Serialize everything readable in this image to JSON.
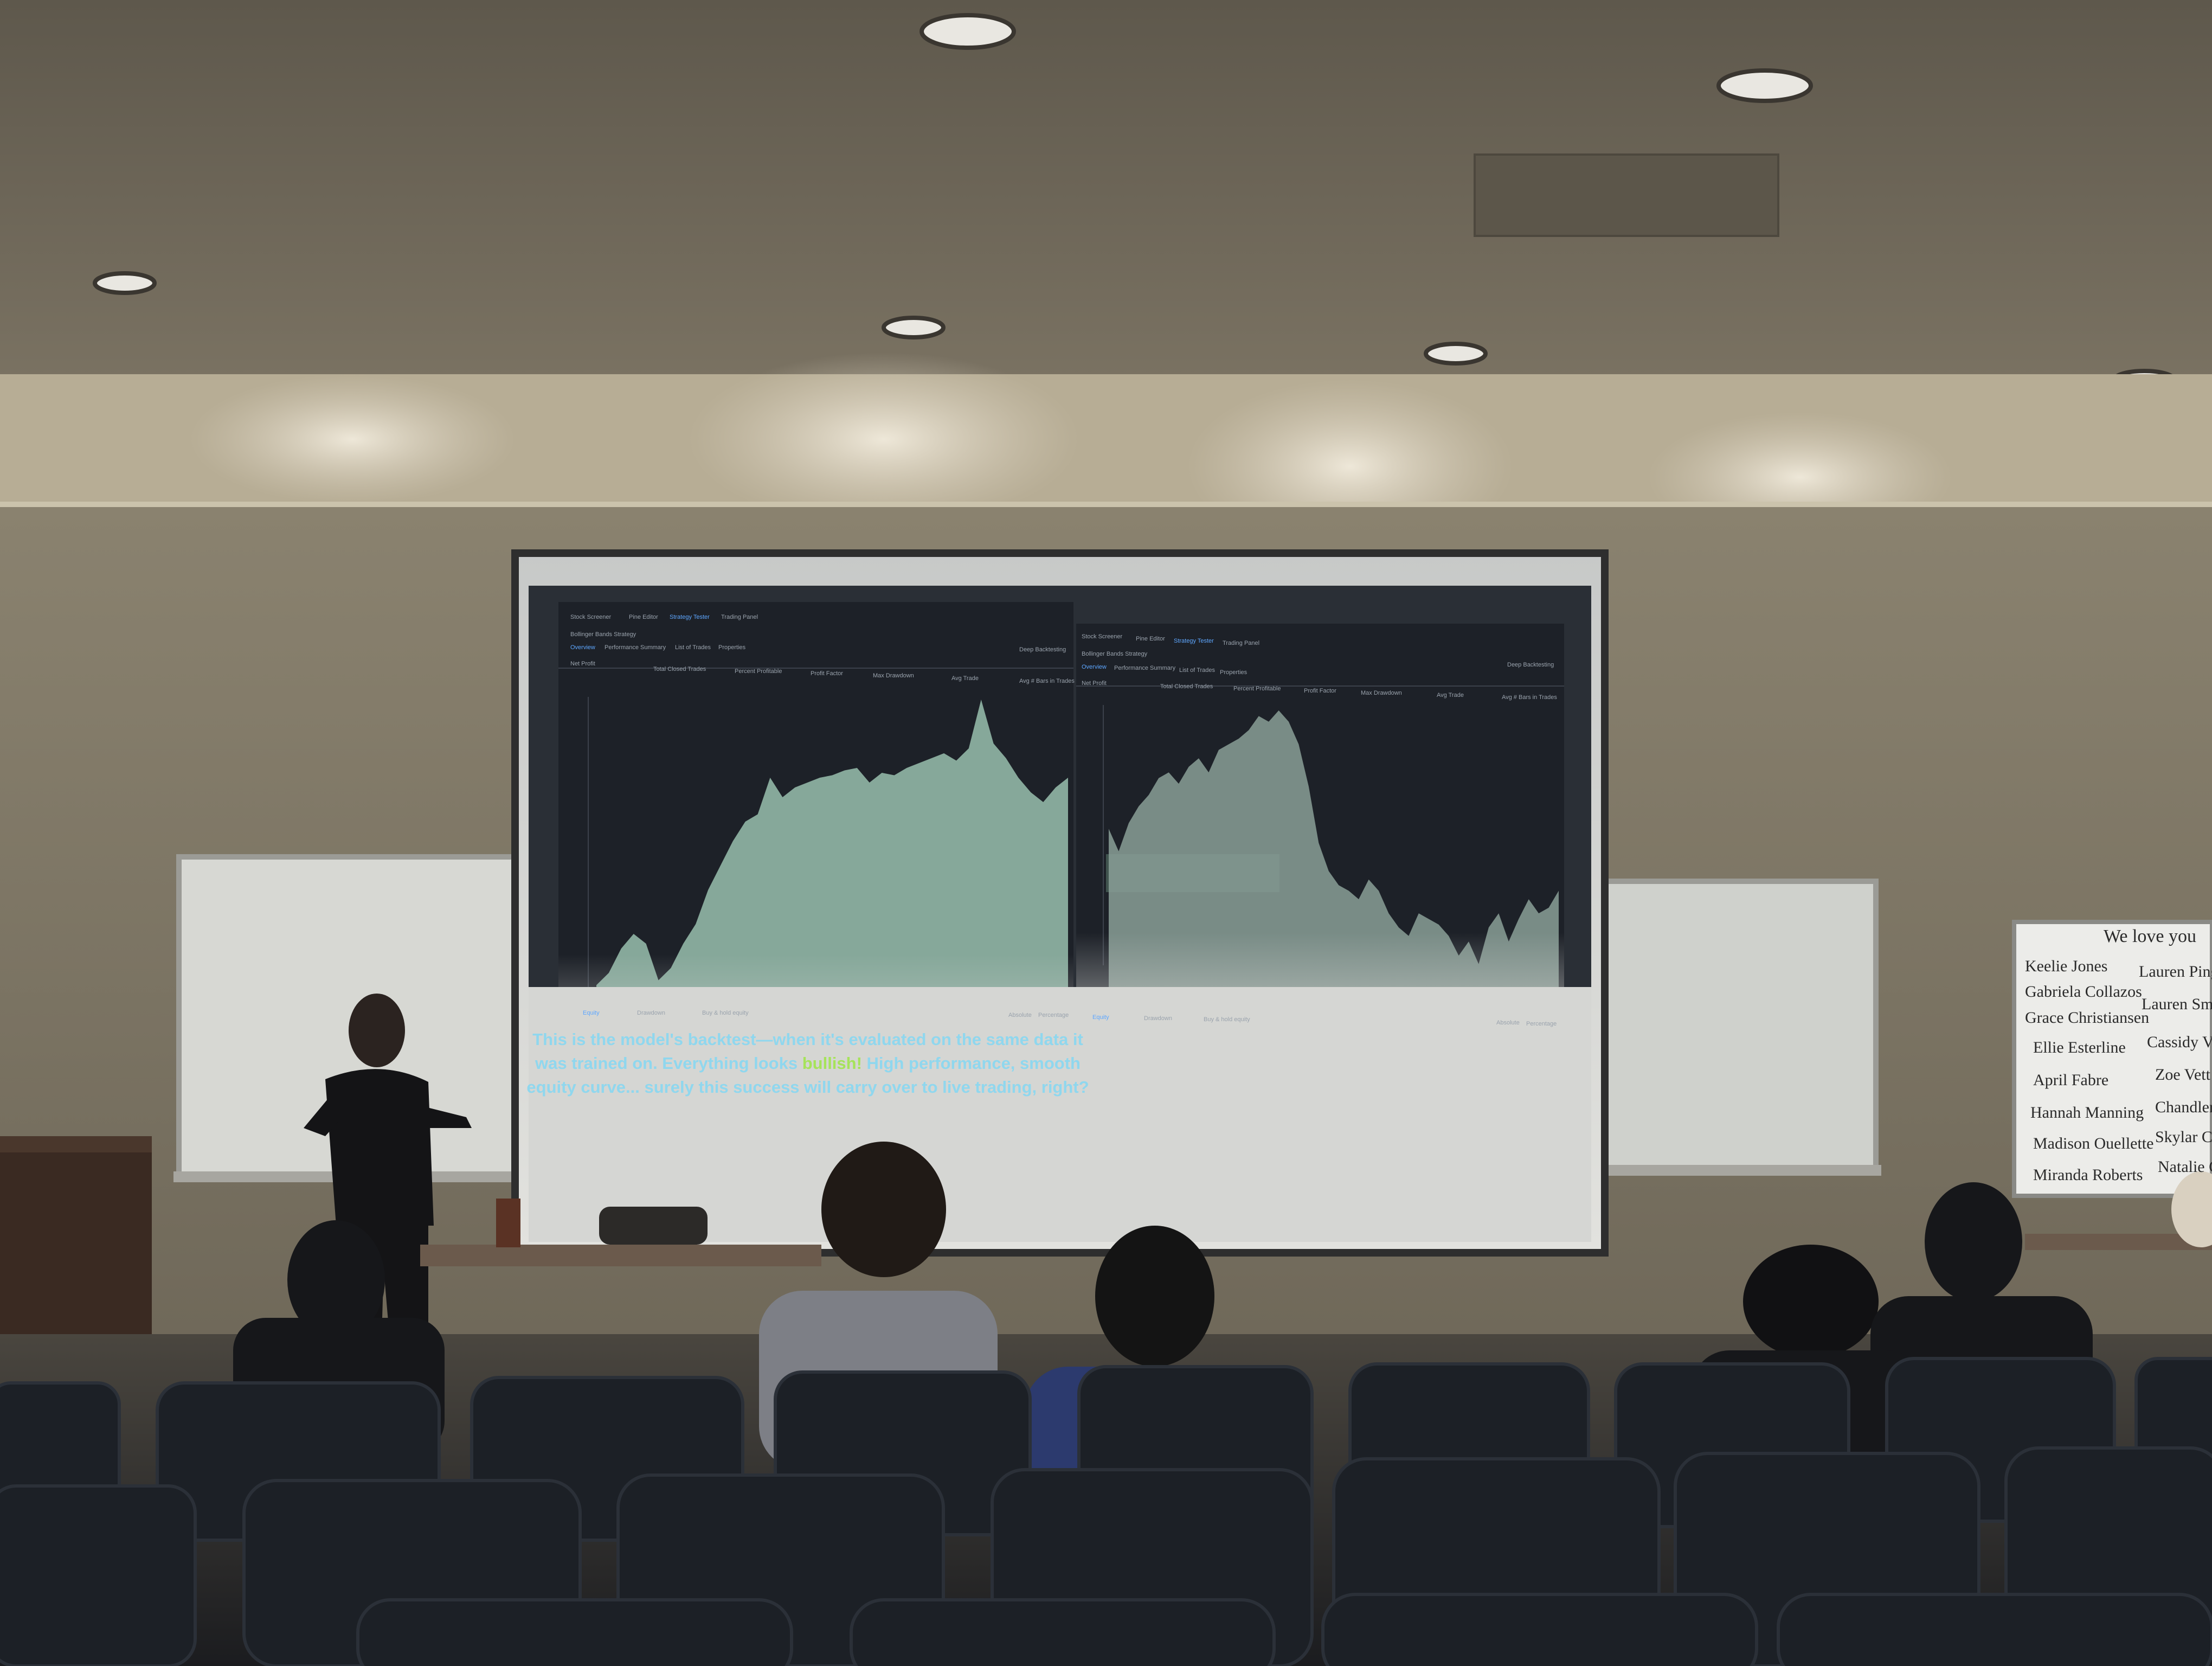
{
  "slide": {
    "caption_part1": "This is the model's backtest—when it's evaluated on the same data it was trained on. Everything looks ",
    "caption_highlight": "bullish!",
    "caption_part2": " High performance, smooth equity curve... surely this success will carry over to live trading, right?",
    "caption_color": "#8fd7ee",
    "highlight_color": "#a6e35a"
  },
  "left_panel": {
    "tabs": [
      "Stock Screener",
      "Pine Editor",
      "Strategy Tester",
      "Trading Panel"
    ],
    "strategy_name": "Bollinger Bands Strategy",
    "sub_tabs": [
      "Overview",
      "Performance Summary",
      "List of Trades",
      "Properties"
    ],
    "toggle_label": "Deep Backtesting",
    "metrics": [
      "Net Profit",
      "Total Closed Trades",
      "Percent Profitable",
      "Profit Factor",
      "Max Drawdown",
      "Avg Trade",
      "Avg # Bars in Trades"
    ],
    "legend": [
      "Equity",
      "Drawdown",
      "Buy & hold equity"
    ],
    "footer": [
      "Absolute",
      "Percentage"
    ]
  },
  "right_panel": {
    "tabs": [
      "Stock Screener",
      "Pine Editor",
      "Strategy Tester",
      "Trading Panel"
    ],
    "strategy_name": "Bollinger Bands Strategy",
    "sub_tabs": [
      "Overview",
      "Performance Summary",
      "List of Trades",
      "Properties"
    ],
    "toggle_label": "Deep Backtesting",
    "metrics": [
      "Net Profit",
      "Total Closed Trades",
      "Percent Profitable",
      "Profit Factor",
      "Max Drawdown",
      "Avg Trade",
      "Avg # Bars in Trades"
    ],
    "legend": [
      "Equity",
      "Drawdown",
      "Buy & hold equity"
    ],
    "footer": [
      "Absolute",
      "Percentage"
    ]
  },
  "whiteboard": {
    "heading": "We love you",
    "names": [
      "Keelie Jones",
      "Gabriela Collazos",
      "Grace Christiansen",
      "Ellie Esterline",
      "April Fabre",
      "Hannah Manning",
      "Madison Ouellette",
      "Miranda Roberts",
      "Lauren Pingel",
      "Lauren Smi",
      "Cassidy Van",
      "Zoe Vett",
      "Chandler",
      "Skylar Ca",
      "Natalie Cl"
    ]
  },
  "colors": {
    "wall": "#7a7262",
    "ceiling": "#6b6456",
    "screen": "#d9dad8",
    "panel_bg": "#1d2128",
    "equity_fill": "#8fb4a4",
    "seat": "#1c2026"
  },
  "chart_data": [
    {
      "type": "area",
      "series": [
        {
          "values": [
            3,
            8,
            18,
            24,
            20,
            5,
            10,
            20,
            28,
            42,
            52,
            62,
            70,
            73,
            88,
            80,
            84,
            86,
            88,
            89,
            91,
            92,
            86,
            90,
            89,
            92,
            94,
            96,
            98,
            95,
            100,
            120,
            102,
            96,
            88,
            82,
            78,
            84,
            88
          ]
        }
      ]
    },
    {
      "type": "area",
      "series": [
        {
          "values": [
            60,
            52,
            62,
            68,
            72,
            78,
            80,
            76,
            82,
            85,
            80,
            88,
            90,
            92,
            95,
            100,
            98,
            102,
            98,
            90,
            75,
            55,
            45,
            40,
            38,
            35,
            42,
            38,
            30,
            25,
            22,
            30,
            28,
            26,
            22,
            15,
            20,
            12,
            25,
            30,
            20,
            28,
            35,
            30,
            32,
            38
          ]
        }
      ]
    }
  ]
}
